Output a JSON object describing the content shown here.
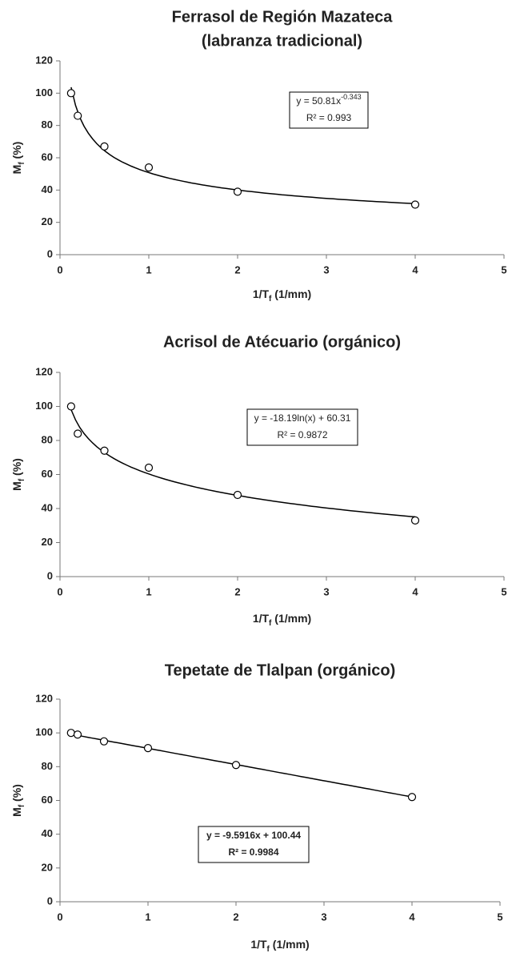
{
  "chart_data": [
    {
      "type": "scatter",
      "title": [
        "Ferrasol de Región  Mazateca",
        "(labranza tradicional)"
      ],
      "xlabel": [
        "1/T",
        "f",
        " (1/mm)"
      ],
      "ylabel": [
        "M",
        "f",
        " (%)"
      ],
      "x": [
        0.125,
        0.2,
        0.5,
        1,
        2,
        4
      ],
      "values": [
        100,
        86,
        67,
        54,
        39,
        31
      ],
      "xlim": [
        0,
        5
      ],
      "xticks": [
        0,
        1,
        2,
        3,
        4,
        5
      ],
      "ylim": [
        0,
        120
      ],
      "yticks": [
        0,
        20,
        40,
        60,
        80,
        100,
        120
      ],
      "trendline": {
        "kind": "power",
        "coefficients": [
          50.81,
          -0.343
        ],
        "equation": [
          "y = 50.81x",
          "-0.343"
        ],
        "r2": "R² = 0.993"
      }
    },
    {
      "type": "scatter",
      "title": [
        "Acrisol de Atécuario (orgánico)"
      ],
      "xlabel": [
        "1/T",
        "f",
        " (1/mm)"
      ],
      "ylabel": [
        "M",
        "f",
        " (%)"
      ],
      "x": [
        0.125,
        0.2,
        0.5,
        1,
        2,
        4
      ],
      "values": [
        100,
        84,
        74,
        64,
        48,
        33
      ],
      "xlim": [
        0,
        5
      ],
      "xticks": [
        0,
        1,
        2,
        3,
        4,
        5
      ],
      "ylim": [
        0,
        120
      ],
      "yticks": [
        0,
        20,
        40,
        60,
        80,
        100,
        120
      ],
      "trendline": {
        "kind": "log",
        "coefficients": [
          -18.19,
          60.31
        ],
        "equation": [
          "y = -18.19ln(x) + 60.31"
        ],
        "r2": "R² = 0.9872"
      }
    },
    {
      "type": "scatter",
      "title": [
        "Tepetate de Tlalpan (orgánico)"
      ],
      "xlabel": [
        "1/T",
        "f",
        " (1/mm)"
      ],
      "ylabel": [
        "M",
        "f",
        " (%)"
      ],
      "x": [
        0.125,
        0.2,
        0.5,
        1,
        2,
        4
      ],
      "values": [
        100,
        99,
        95,
        91,
        81,
        62
      ],
      "xlim": [
        0,
        5
      ],
      "xticks": [
        0,
        1,
        2,
        3,
        4,
        5
      ],
      "ylim": [
        0,
        120
      ],
      "yticks": [
        0,
        20,
        40,
        60,
        80,
        100,
        120
      ],
      "trendline": {
        "kind": "linear",
        "coefficients": [
          -9.5916,
          100.44
        ],
        "equation": [
          "y = -9.5916x + 100.44"
        ],
        "r2": "R² = 0.9984"
      }
    }
  ]
}
